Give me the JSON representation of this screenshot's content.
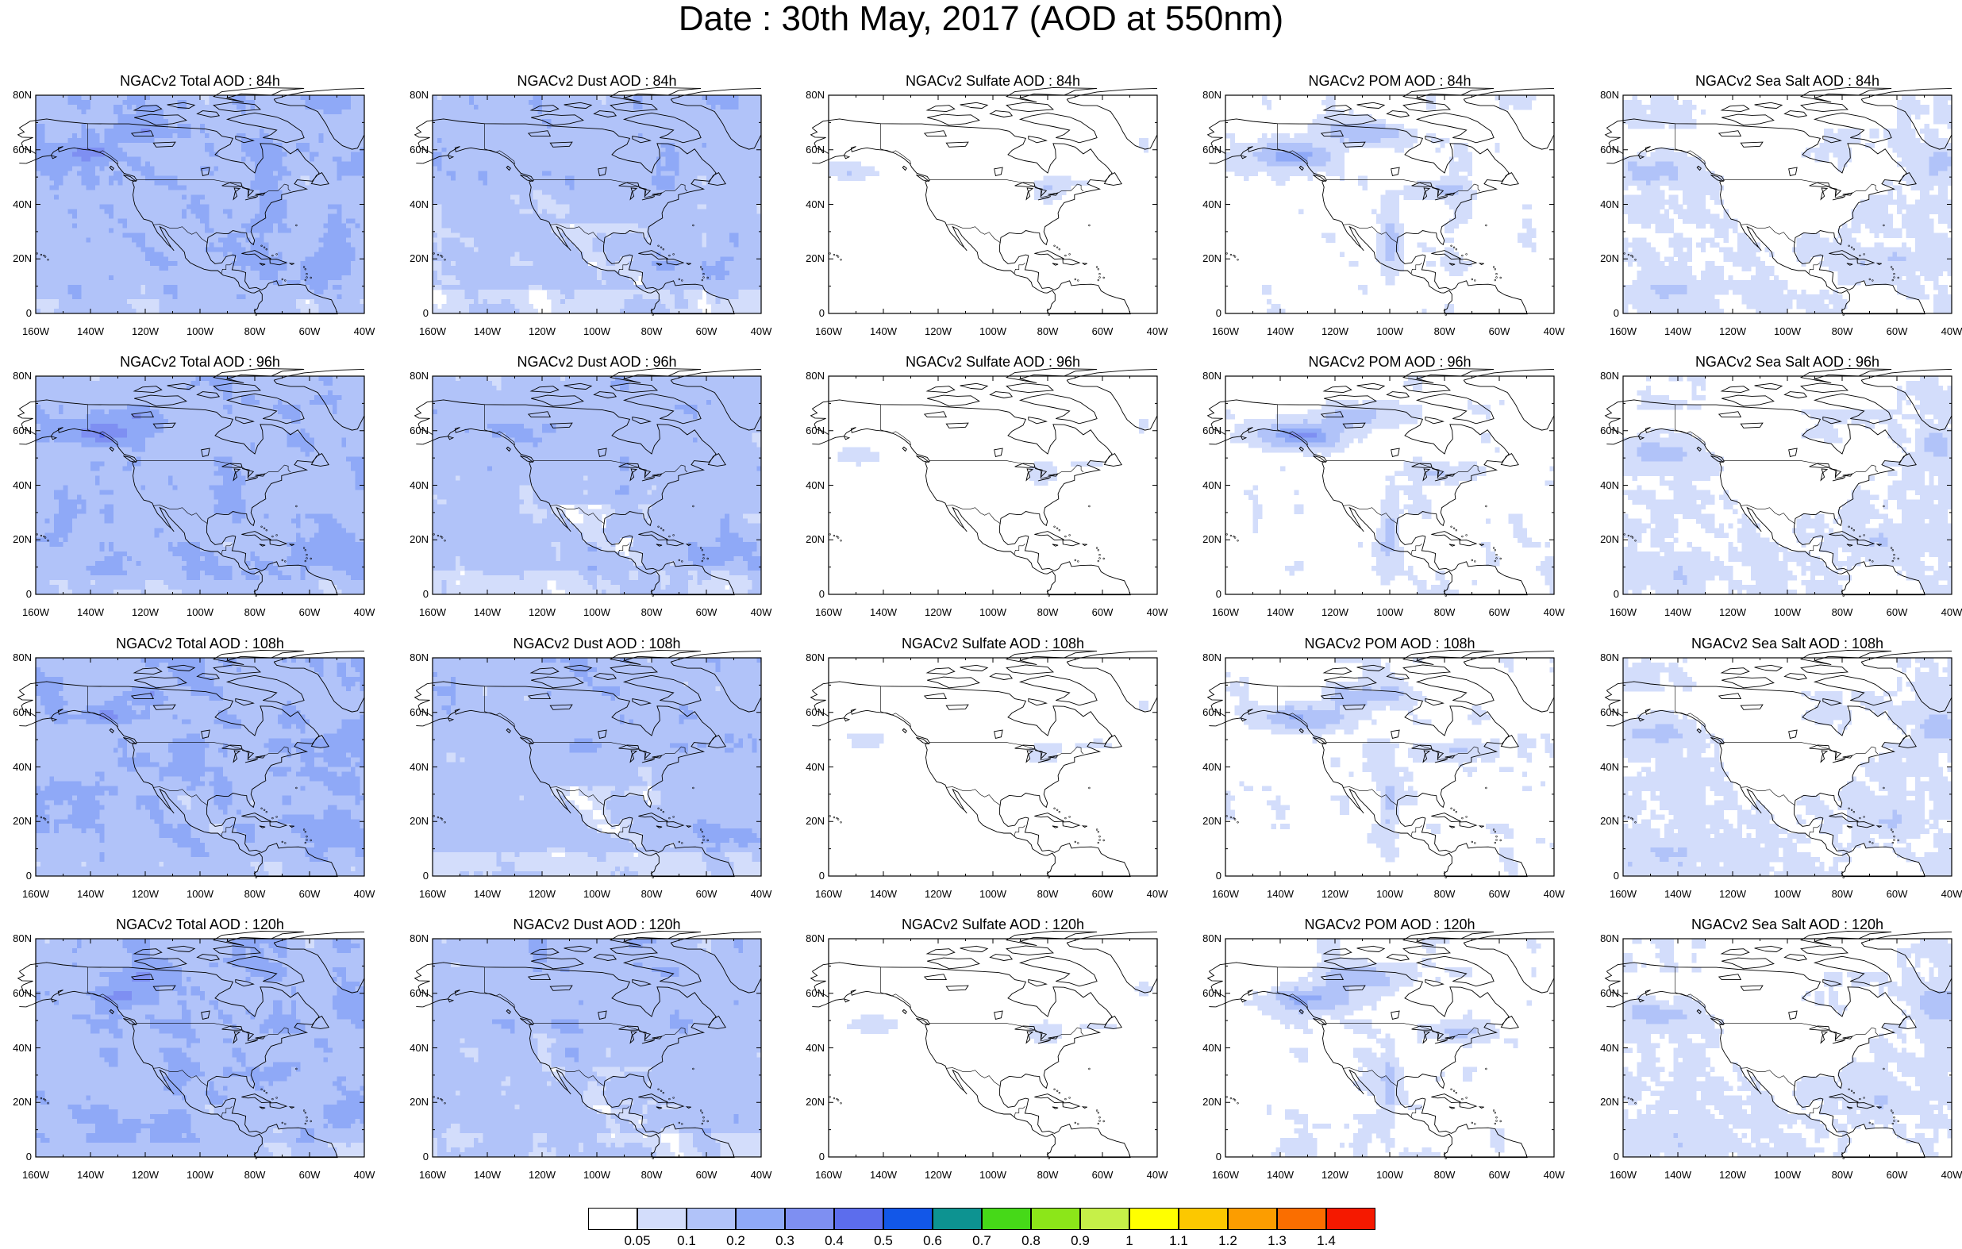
{
  "title": "Date : 30th May, 2017 (AOD at 550nm)",
  "panels": [
    {
      "title": "NGACv2 Total AOD : 84h",
      "species": "total",
      "lead": "84h"
    },
    {
      "title": "NGACv2 Dust AOD : 84h",
      "species": "dust",
      "lead": "84h"
    },
    {
      "title": "NGACv2 Sulfate AOD : 84h",
      "species": "sulfate",
      "lead": "84h"
    },
    {
      "title": "NGACv2 POM AOD : 84h",
      "species": "pom",
      "lead": "84h"
    },
    {
      "title": "NGACv2 Sea Salt AOD : 84h",
      "species": "seasalt",
      "lead": "84h"
    },
    {
      "title": "NGACv2 Total AOD : 96h",
      "species": "total",
      "lead": "96h"
    },
    {
      "title": "NGACv2 Dust AOD : 96h",
      "species": "dust",
      "lead": "96h"
    },
    {
      "title": "NGACv2 Sulfate AOD : 96h",
      "species": "sulfate",
      "lead": "96h"
    },
    {
      "title": "NGACv2 POM AOD : 96h",
      "species": "pom",
      "lead": "96h"
    },
    {
      "title": "NGACv2 Sea Salt AOD : 96h",
      "species": "seasalt",
      "lead": "96h"
    },
    {
      "title": "NGACv2 Total AOD : 108h",
      "species": "total",
      "lead": "108h"
    },
    {
      "title": "NGACv2 Dust AOD : 108h",
      "species": "dust",
      "lead": "108h"
    },
    {
      "title": "NGACv2 Sulfate AOD : 108h",
      "species": "sulfate",
      "lead": "108h"
    },
    {
      "title": "NGACv2 POM AOD : 108h",
      "species": "pom",
      "lead": "108h"
    },
    {
      "title": "NGACv2 Sea Salt AOD : 108h",
      "species": "seasalt",
      "lead": "108h"
    },
    {
      "title": "NGACv2 Total AOD : 120h",
      "species": "total",
      "lead": "120h"
    },
    {
      "title": "NGACv2 Dust AOD : 120h",
      "species": "dust",
      "lead": "120h"
    },
    {
      "title": "NGACv2 Sulfate AOD : 120h",
      "species": "sulfate",
      "lead": "120h"
    },
    {
      "title": "NGACv2 POM AOD : 120h",
      "species": "pom",
      "lead": "120h"
    },
    {
      "title": "NGACv2 Sea Salt  AOD : 120h",
      "species": "seasalt",
      "lead": "120h"
    }
  ],
  "axes": {
    "lat_labels": [
      "80N",
      "60N",
      "40N",
      "20N",
      "0"
    ],
    "lon_labels": [
      "160W",
      "140W",
      "120W",
      "100W",
      "80W",
      "60W",
      "40W"
    ],
    "lat_range": [
      0,
      80
    ],
    "lon_range": [
      -160,
      -40
    ]
  },
  "colorbar": {
    "labels": [
      "0.05",
      "0.1",
      "0.2",
      "0.3",
      "0.4",
      "0.5",
      "0.6",
      "0.7",
      "0.8",
      "0.9",
      "1",
      "1.1",
      "1.2",
      "1.3",
      "1.4"
    ],
    "colors": [
      "#ffffff",
      "#d3ddfb",
      "#b1c3f9",
      "#8fa9f7",
      "#7e8ff2",
      "#5c6ded",
      "#1257e8",
      "#0d9391",
      "#46d918",
      "#8ce619",
      "#c6f048",
      "#ffff00",
      "#fcc800",
      "#fc9d00",
      "#fa6e00",
      "#f51900"
    ]
  }
}
